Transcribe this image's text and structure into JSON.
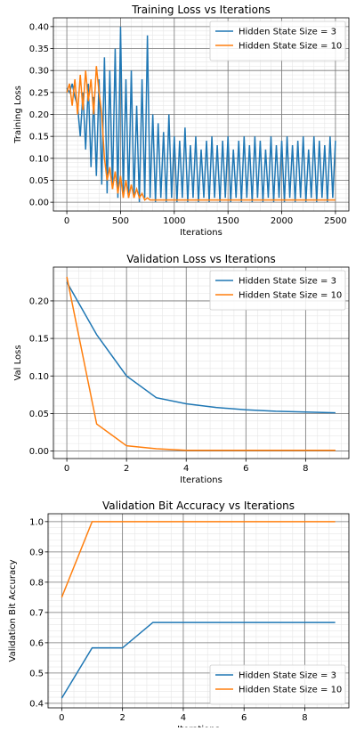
{
  "chart_data": [
    {
      "type": "line",
      "title": "Training Loss vs Iterations",
      "xlabel": "Iterations",
      "ylabel": "Training Loss",
      "x": [
        0,
        25,
        50,
        75,
        100,
        125,
        150,
        175,
        200,
        225,
        250,
        275,
        300,
        325,
        350,
        375,
        400,
        425,
        450,
        475,
        500,
        525,
        550,
        575,
        600,
        625,
        650,
        675,
        700,
        725,
        750,
        775,
        800,
        825,
        850,
        875,
        900,
        925,
        950,
        975,
        1000,
        1025,
        1050,
        1075,
        1100,
        1125,
        1150,
        1175,
        1200,
        1225,
        1250,
        1275,
        1300,
        1325,
        1350,
        1375,
        1400,
        1425,
        1450,
        1475,
        1500,
        1525,
        1550,
        1575,
        1600,
        1625,
        1650,
        1675,
        1700,
        1725,
        1750,
        1775,
        1800,
        1825,
        1850,
        1875,
        1900,
        1925,
        1950,
        1975,
        2000,
        2025,
        2050,
        2075,
        2100,
        2125,
        2150,
        2175,
        2200,
        2225,
        2250,
        2275,
        2300,
        2325,
        2350,
        2375,
        2400,
        2425,
        2450,
        2475,
        2500
      ],
      "series": [
        {
          "name": "Hidden State Size = 3",
          "color": "#1f77b4",
          "values": [
            0.26,
            0.25,
            0.27,
            0.24,
            0.22,
            0.15,
            0.25,
            0.12,
            0.27,
            0.08,
            0.24,
            0.06,
            0.28,
            0.04,
            0.33,
            0.02,
            0.3,
            0.03,
            0.35,
            0.01,
            0.4,
            0.02,
            0.28,
            0.01,
            0.3,
            0.01,
            0.22,
            0.0,
            0.28,
            0.01,
            0.38,
            0.01,
            0.2,
            0.0,
            0.18,
            0.01,
            0.16,
            0.0,
            0.2,
            0.01,
            0.15,
            0.0,
            0.14,
            0.01,
            0.17,
            0.0,
            0.13,
            0.01,
            0.15,
            0.0,
            0.12,
            0.01,
            0.14,
            0.0,
            0.15,
            0.01,
            0.13,
            0.0,
            0.14,
            0.01,
            0.15,
            0.0,
            0.12,
            0.01,
            0.14,
            0.0,
            0.15,
            0.01,
            0.13,
            0.0,
            0.15,
            0.01,
            0.14,
            0.0,
            0.12,
            0.01,
            0.15,
            0.0,
            0.13,
            0.01,
            0.14,
            0.0,
            0.15,
            0.01,
            0.13,
            0.0,
            0.14,
            0.01,
            0.15,
            0.0,
            0.12,
            0.01,
            0.15,
            0.0,
            0.14,
            0.01,
            0.13,
            0.0,
            0.15,
            0.01,
            0.14
          ]
        },
        {
          "name": "Hidden State Size = 10",
          "color": "#ff7f0e",
          "values": [
            0.25,
            0.27,
            0.22,
            0.28,
            0.2,
            0.29,
            0.21,
            0.3,
            0.23,
            0.28,
            0.2,
            0.31,
            0.25,
            0.2,
            0.1,
            0.05,
            0.08,
            0.03,
            0.07,
            0.02,
            0.06,
            0.01,
            0.05,
            0.01,
            0.04,
            0.01,
            0.03,
            0.01,
            0.02,
            0.005,
            0.01,
            0.005,
            0.005,
            0.005,
            0.005,
            0.005,
            0.005,
            0.005,
            0.005,
            0.005,
            0.005,
            0.005,
            0.005,
            0.005,
            0.005,
            0.005,
            0.005,
            0.005,
            0.005,
            0.005,
            0.005,
            0.005,
            0.005,
            0.005,
            0.005,
            0.005,
            0.005,
            0.005,
            0.005,
            0.005,
            0.005,
            0.005,
            0.005,
            0.005,
            0.005,
            0.005,
            0.005,
            0.005,
            0.005,
            0.005,
            0.005,
            0.005,
            0.005,
            0.005,
            0.005,
            0.005,
            0.005,
            0.005,
            0.005,
            0.005,
            0.005,
            0.005,
            0.005,
            0.005,
            0.005,
            0.005,
            0.005,
            0.005,
            0.005,
            0.005,
            0.005,
            0.005,
            0.005,
            0.005,
            0.005,
            0.005,
            0.005,
            0.005,
            0.005,
            0.005,
            0.005
          ]
        }
      ],
      "xlim": [
        -125,
        2625
      ],
      "xticks": [
        0,
        500,
        1000,
        1500,
        2000,
        2500
      ],
      "ylim": [
        -0.02,
        0.42
      ],
      "yticks": [
        {
          "value": 0,
          "label": "0.00"
        },
        {
          "value": 0.05,
          "label": "0.05"
        },
        {
          "value": 0.1,
          "label": "0.10"
        },
        {
          "value": 0.15,
          "label": "0.15"
        },
        {
          "value": 0.2,
          "label": "0.20"
        },
        {
          "value": 0.25,
          "label": "0.25"
        },
        {
          "value": 0.3,
          "label": "0.30"
        },
        {
          "value": 0.35,
          "label": "0.35"
        },
        {
          "value": 0.4,
          "label": "0.40"
        }
      ],
      "grid": true,
      "minor_grid": true,
      "legend": "upper right"
    },
    {
      "type": "line",
      "title": "Validation Loss vs Iterations",
      "xlabel": "Iterations",
      "ylabel": "Val Loss",
      "x": [
        0,
        1,
        2,
        3,
        4,
        5,
        6,
        7,
        8,
        9
      ],
      "series": [
        {
          "name": "Hidden State Size = 3",
          "color": "#1f77b4",
          "values": [
            0.225,
            0.155,
            0.1,
            0.071,
            0.063,
            0.058,
            0.055,
            0.053,
            0.052,
            0.051
          ]
        },
        {
          "name": "Hidden State Size = 10",
          "color": "#ff7f0e",
          "values": [
            0.232,
            0.036,
            0.007,
            0.003,
            0.001,
            0.001,
            0.001,
            0.001,
            0.001,
            0.001
          ]
        }
      ],
      "xlim": [
        -0.45,
        9.45
      ],
      "xticks": [
        0,
        2,
        4,
        6,
        8
      ],
      "ylim": [
        -0.01,
        0.245
      ],
      "yticks": [
        {
          "value": 0,
          "label": "0.00"
        },
        {
          "value": 0.05,
          "label": "0.05"
        },
        {
          "value": 0.1,
          "label": "0.10"
        },
        {
          "value": 0.15,
          "label": "0.15"
        },
        {
          "value": 0.2,
          "label": "0.20"
        }
      ],
      "grid": true,
      "minor_grid": true,
      "legend": "upper right"
    },
    {
      "type": "line",
      "title": "Validation Bit Accuracy vs Iterations",
      "xlabel": "Iterations",
      "ylabel": "Validation Bit Accuracy",
      "x": [
        0,
        1,
        2,
        3,
        4,
        5,
        6,
        7,
        8,
        9
      ],
      "series": [
        {
          "name": "Hidden State Size = 3",
          "color": "#1f77b4",
          "values": [
            0.417,
            0.583,
            0.583,
            0.667,
            0.667,
            0.667,
            0.667,
            0.667,
            0.667,
            0.667
          ]
        },
        {
          "name": "Hidden State Size = 10",
          "color": "#ff7f0e",
          "values": [
            0.75,
            1.0,
            1.0,
            1.0,
            1.0,
            1.0,
            1.0,
            1.0,
            1.0,
            1.0
          ]
        }
      ],
      "xlim": [
        -0.45,
        9.45
      ],
      "xticks": [
        0,
        2,
        4,
        6,
        8
      ],
      "ylim": [
        0.385,
        1.026
      ],
      "yticks": [
        0.4,
        0.5,
        0.6,
        0.7,
        0.8,
        0.9,
        {
          "value": 1,
          "label": "1.0"
        }
      ],
      "grid": true,
      "minor_grid": true,
      "legend": "lower right"
    }
  ]
}
